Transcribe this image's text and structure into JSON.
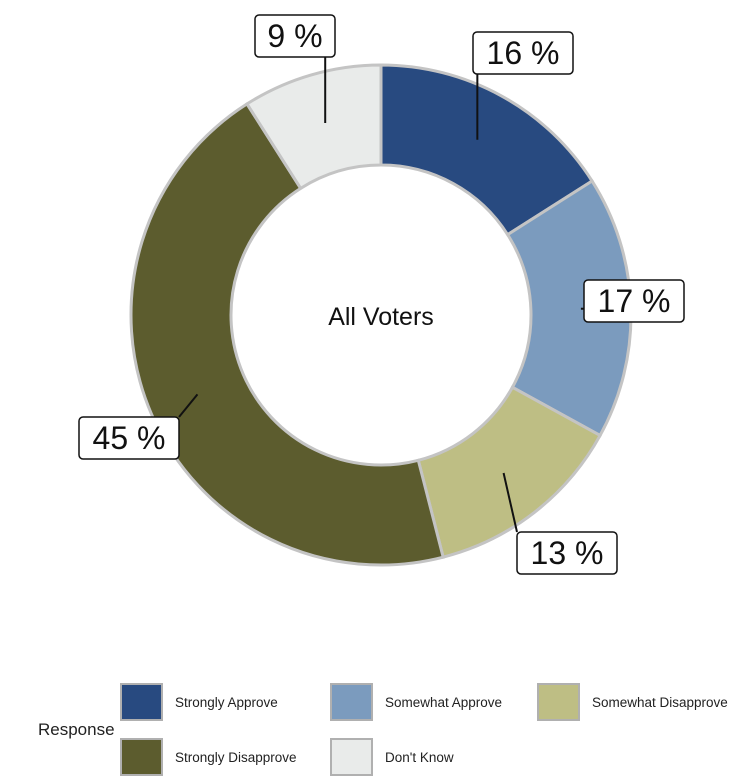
{
  "chart_data": {
    "type": "pie",
    "center_label": "All Voters",
    "categories": [
      "Strongly Approve",
      "Somewhat Approve",
      "Somewhat Disapprove",
      "Strongly Disapprove",
      "Don't Know"
    ],
    "values": [
      16,
      17,
      13,
      45,
      9
    ],
    "value_labels": [
      "16 %",
      "17 %",
      "13 %",
      "45 %",
      "9 %"
    ],
    "colors": [
      "#284a80",
      "#7b9bbe",
      "#bebe84",
      "#5c5c2e",
      "#e9ebea"
    ],
    "legend": {
      "title": "Response",
      "placement": "bottom",
      "items": [
        "Strongly Approve",
        "Somewhat Approve",
        "Somewhat Disapprove",
        "Strongly Disapprove",
        "Don't Know"
      ]
    }
  }
}
